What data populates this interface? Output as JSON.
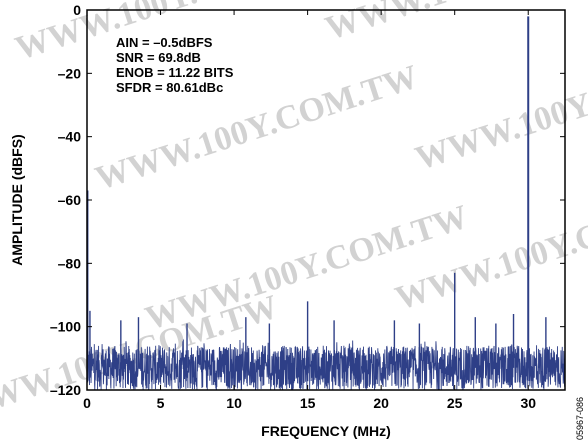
{
  "chart_data": {
    "type": "line",
    "xlabel": "FREQUENCY (MHz)",
    "ylabel": "AMPLITUDE (dBFS)",
    "xlim": [
      0,
      32.5
    ],
    "ylim": [
      -120,
      0
    ],
    "x_ticks": [
      0,
      5,
      10,
      15,
      20,
      25,
      30
    ],
    "y_ticks": [
      0,
      -20,
      -40,
      -60,
      -80,
      -100,
      -120
    ],
    "grid": false,
    "line_color": "#2e3f87",
    "annotations": [
      "AIN = –0.5dBFS",
      "SNR = 69.8dB",
      "ENOB = 11.22 BITS",
      "SFDR = 80.61dBc"
    ],
    "noise_floor_dbfs": -113,
    "peaks": [
      {
        "x": 0,
        "y": -57
      },
      {
        "x": 30.0,
        "y": -2
      },
      {
        "x": 25.0,
        "y": -83
      },
      {
        "x": 15.0,
        "y": -92
      },
      {
        "x": 0.2,
        "y": -95
      },
      {
        "x": 2.3,
        "y": -98
      },
      {
        "x": 3.5,
        "y": -97
      },
      {
        "x": 6.8,
        "y": -99
      },
      {
        "x": 10.8,
        "y": -97
      },
      {
        "x": 12.4,
        "y": -99
      },
      {
        "x": 16.8,
        "y": -98
      },
      {
        "x": 20.9,
        "y": -98
      },
      {
        "x": 22.6,
        "y": -99
      },
      {
        "x": 26.4,
        "y": -97
      },
      {
        "x": 27.8,
        "y": -99
      },
      {
        "x": 29.0,
        "y": -96
      },
      {
        "x": 31.2,
        "y": -97
      }
    ]
  },
  "watermark": "WWW.100Y.COM.TW",
  "figure_id": "05967-086"
}
